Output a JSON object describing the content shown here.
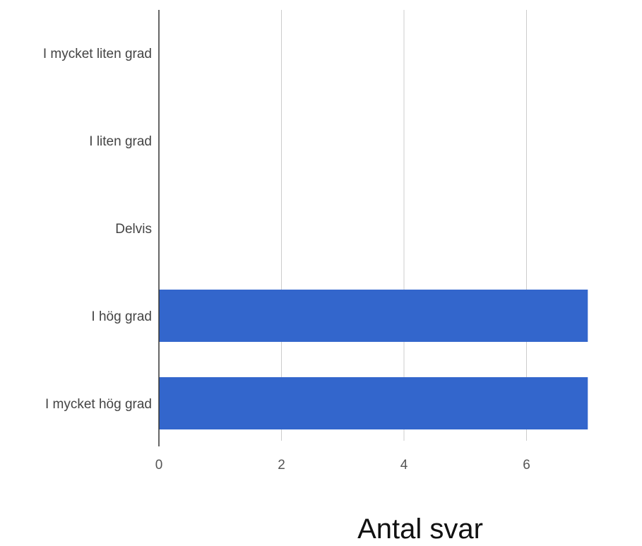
{
  "chart_data": {
    "type": "bar",
    "orientation": "horizontal",
    "categories": [
      "I mycket liten grad",
      "I liten grad",
      "Delvis",
      "I hög grad",
      "I mycket hög grad"
    ],
    "values": [
      0,
      0,
      0,
      7,
      7
    ],
    "xlabel": "Antal svar",
    "ylabel": "",
    "xlim": [
      0,
      7
    ],
    "xticks": [
      "0",
      "2",
      "4",
      "6"
    ],
    "grid": true,
    "bar_color": "#3366cc",
    "grid_color": "#cccccc",
    "axis_color": "#333333"
  }
}
